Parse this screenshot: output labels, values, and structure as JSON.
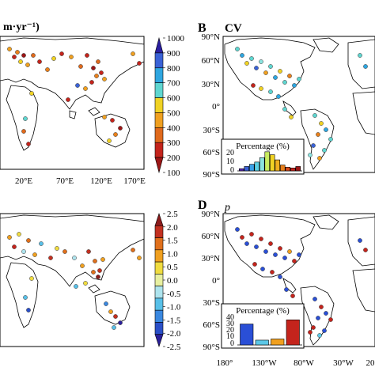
{
  "panels": {
    "a": {
      "partial_title": "m·yr⁻¹)",
      "x_ticks": [
        "20°E",
        "70°E",
        "120°E",
        "170°E"
      ],
      "colorbar_ticks": [
        "1000",
        "900",
        "800",
        "700",
        "600",
        "500",
        "400",
        "300",
        "200",
        "100"
      ],
      "colorbar_colors": [
        "#2b1fa0",
        "#3a62d6",
        "#2fa6e0",
        "#5fd6d0",
        "#f0d224",
        "#f0a020",
        "#e06a1c",
        "#c4241c",
        "#9c1616"
      ]
    },
    "b": {
      "letter": "B",
      "title": "CV",
      "y_ticks": [
        "90°N",
        "60°N",
        "30°N",
        "0°",
        "30°S",
        "60°S",
        "90°S"
      ],
      "inset_title": "Percentage (%)",
      "inset_y_ticks": [
        "20",
        "10",
        "0"
      ]
    },
    "c": {
      "colorbar_ticks": [
        "2.5",
        "2.0",
        "1.5",
        "1.0",
        "0.5",
        "0.0",
        "-0.5",
        "-1.0",
        "-1.5",
        "-2.0",
        "-2.5"
      ],
      "colorbar_colors": [
        "#8c1c1c",
        "#c23020",
        "#e0701c",
        "#f0a020",
        "#f0dc40",
        "#e8f0a0",
        "#aee4ee",
        "#58c0e8",
        "#3a88e0",
        "#2a4fc8",
        "#2a1f9a"
      ]
    },
    "d": {
      "letter": "D",
      "title": "p",
      "y_ticks": [
        "90°N",
        "60°N",
        "30°N",
        "0°",
        "30°S",
        "60°S",
        "90°S"
      ],
      "x_ticks": [
        "180°",
        "130°W",
        "80°W",
        "30°W",
        "20"
      ],
      "inset_title": "Percentage (%)",
      "inset_y_ticks": [
        "40",
        "30",
        "20",
        "10",
        "0"
      ]
    }
  },
  "chart_data": [
    {
      "type": "bar",
      "panel": "B inset",
      "title": "Percentage (%)",
      "values": [
        3,
        6,
        9,
        12,
        18,
        26,
        22,
        15,
        8,
        5,
        4,
        6
      ],
      "colors": [
        "#5a2ab0",
        "#3a62d6",
        "#3aa0e8",
        "#5cd0e4",
        "#8ce4e0",
        "#c8ec60",
        "#f0d224",
        "#f0b020",
        "#e8801c",
        "#d44a1c",
        "#c4241c",
        "#9c1616"
      ],
      "ylim": [
        0,
        28
      ]
    },
    {
      "type": "bar",
      "panel": "D inset",
      "title": "Percentage (%)",
      "values": [
        35,
        8,
        10,
        42
      ],
      "colors": [
        "#2a4fd6",
        "#5cc8e8",
        "#f0a020",
        "#c4241c"
      ],
      "ylim": [
        0,
        45
      ]
    }
  ],
  "sites": {
    "a": [
      [
        12,
        62,
        "#f0a020"
      ],
      [
        18,
        72,
        "#c4241c"
      ],
      [
        22,
        66,
        "#e8801c"
      ],
      [
        26,
        78,
        "#f0d224"
      ],
      [
        30,
        70,
        "#9c1616"
      ],
      [
        35,
        82,
        "#f0a020"
      ],
      [
        42,
        70,
        "#e06a1c"
      ],
      [
        50,
        78,
        "#c4241c"
      ],
      [
        60,
        88,
        "#e8801c"
      ],
      [
        68,
        74,
        "#f0d224"
      ],
      [
        78,
        68,
        "#c4241c"
      ],
      [
        90,
        72,
        "#f0a020"
      ],
      [
        102,
        84,
        "#e06a1c"
      ],
      [
        110,
        70,
        "#c4241c"
      ],
      [
        118,
        86,
        "#9c1616"
      ],
      [
        124,
        78,
        "#e06a1c"
      ],
      [
        128,
        92,
        "#c4241c"
      ],
      [
        132,
        100,
        "#f0a020"
      ],
      [
        122,
        96,
        "#e8801c"
      ],
      [
        116,
        104,
        "#c4241c"
      ],
      [
        108,
        112,
        "#f0a020"
      ],
      [
        98,
        108,
        "#3a62d6"
      ],
      [
        86,
        126,
        "#c4241c"
      ],
      [
        40,
        118,
        "#f0d224"
      ],
      [
        32,
        150,
        "#5fd6d0"
      ],
      [
        30,
        166,
        "#e06a1c"
      ],
      [
        36,
        182,
        "#c4241c"
      ],
      [
        132,
        148,
        "#f0a020"
      ],
      [
        142,
        152,
        "#c4241c"
      ],
      [
        146,
        170,
        "#e8801c"
      ],
      [
        138,
        178,
        "#f0d224"
      ],
      [
        152,
        162,
        "#9c1616"
      ],
      [
        168,
        68,
        "#f0a020"
      ],
      [
        176,
        80,
        "#c4241c"
      ]
    ],
    "b": [
      [
        300,
        62,
        "#5fd6d0"
      ],
      [
        306,
        70,
        "#2fa6e0"
      ],
      [
        312,
        80,
        "#f0d224"
      ],
      [
        318,
        74,
        "#5fd6d0"
      ],
      [
        324,
        86,
        "#3a62d6"
      ],
      [
        330,
        78,
        "#8ce4e0"
      ],
      [
        336,
        92,
        "#f0a020"
      ],
      [
        342,
        84,
        "#5fd6d0"
      ],
      [
        348,
        98,
        "#2fa6e0"
      ],
      [
        354,
        90,
        "#f0d224"
      ],
      [
        360,
        104,
        "#5fd6d0"
      ],
      [
        366,
        96,
        "#e8801c"
      ],
      [
        372,
        108,
        "#2fa6e0"
      ],
      [
        378,
        100,
        "#5fd6d0"
      ],
      [
        320,
        108,
        "#c4241c"
      ],
      [
        330,
        112,
        "#f0d224"
      ],
      [
        342,
        116,
        "#5fd6d0"
      ],
      [
        352,
        122,
        "#2fa6e0"
      ],
      [
        398,
        146,
        "#5fd6d0"
      ],
      [
        406,
        156,
        "#f0d224"
      ],
      [
        412,
        164,
        "#2fa6e0"
      ],
      [
        418,
        176,
        "#5fd6d0"
      ],
      [
        402,
        170,
        "#e8801c"
      ],
      [
        396,
        184,
        "#3a62d6"
      ],
      [
        410,
        190,
        "#5fd6d0"
      ],
      [
        404,
        200,
        "#f0a020"
      ],
      [
        392,
        196,
        "#8ce4e0"
      ],
      [
        360,
        138,
        "#5fd6d0"
      ],
      [
        368,
        148,
        "#f0d224"
      ],
      [
        455,
        70,
        "#5fd6d0"
      ],
      [
        462,
        84,
        "#2fa6e0"
      ]
    ],
    "c": [
      [
        12,
        300,
        "#f0a020"
      ],
      [
        18,
        312,
        "#c4241c"
      ],
      [
        24,
        296,
        "#f0dc40"
      ],
      [
        30,
        318,
        "#aee4ee"
      ],
      [
        36,
        304,
        "#e0701c"
      ],
      [
        44,
        322,
        "#f0a020"
      ],
      [
        52,
        308,
        "#58c0e8"
      ],
      [
        64,
        326,
        "#c23020"
      ],
      [
        72,
        314,
        "#f0dc40"
      ],
      [
        82,
        318,
        "#e0701c"
      ],
      [
        94,
        326,
        "#aee4ee"
      ],
      [
        104,
        336,
        "#f0a020"
      ],
      [
        112,
        318,
        "#c23020"
      ],
      [
        120,
        330,
        "#e0701c"
      ],
      [
        126,
        342,
        "#c23020"
      ],
      [
        130,
        328,
        "#f0a020"
      ],
      [
        124,
        350,
        "#8c1c1c"
      ],
      [
        118,
        344,
        "#e0701c"
      ],
      [
        108,
        358,
        "#f0dc40"
      ],
      [
        96,
        362,
        "#58c0e8"
      ],
      [
        40,
        352,
        "#f0dc40"
      ],
      [
        32,
        376,
        "#58c0e8"
      ],
      [
        36,
        392,
        "#2a4fc8"
      ],
      [
        134,
        384,
        "#3a88e0"
      ],
      [
        140,
        394,
        "#f0a020"
      ],
      [
        146,
        400,
        "#c23020"
      ],
      [
        152,
        408,
        "#2a1f9a"
      ],
      [
        144,
        414,
        "#58c0e8"
      ],
      [
        168,
        316,
        "#e0701c"
      ],
      [
        176,
        326,
        "#f0a020"
      ]
    ],
    "d": [
      [
        300,
        290,
        "#2a4fd6"
      ],
      [
        306,
        300,
        "#c4241c"
      ],
      [
        312,
        308,
        "#2a4fd6"
      ],
      [
        318,
        296,
        "#c4241c"
      ],
      [
        324,
        312,
        "#2a4fd6"
      ],
      [
        330,
        302,
        "#c4241c"
      ],
      [
        336,
        318,
        "#2a4fd6"
      ],
      [
        342,
        308,
        "#c4241c"
      ],
      [
        348,
        322,
        "#2a4fd6"
      ],
      [
        354,
        314,
        "#c4241c"
      ],
      [
        360,
        326,
        "#2a4fd6"
      ],
      [
        366,
        318,
        "#f0a020"
      ],
      [
        372,
        330,
        "#c4241c"
      ],
      [
        378,
        322,
        "#2a4fd6"
      ],
      [
        322,
        334,
        "#c4241c"
      ],
      [
        332,
        340,
        "#2a4fd6"
      ],
      [
        344,
        344,
        "#c4241c"
      ],
      [
        354,
        350,
        "#2a4fd6"
      ],
      [
        398,
        378,
        "#2a4fd6"
      ],
      [
        406,
        388,
        "#c4241c"
      ],
      [
        412,
        396,
        "#2a4fd6"
      ],
      [
        418,
        404,
        "#c4241c"
      ],
      [
        402,
        402,
        "#2a4fd6"
      ],
      [
        396,
        414,
        "#c4241c"
      ],
      [
        410,
        418,
        "#2a4fd6"
      ],
      [
        404,
        424,
        "#5cc8e8"
      ],
      [
        392,
        420,
        "#c4241c"
      ],
      [
        362,
        366,
        "#2a4fd6"
      ],
      [
        370,
        374,
        "#c4241c"
      ],
      [
        455,
        304,
        "#2a4fd6"
      ],
      [
        462,
        316,
        "#c4241c"
      ]
    ]
  }
}
